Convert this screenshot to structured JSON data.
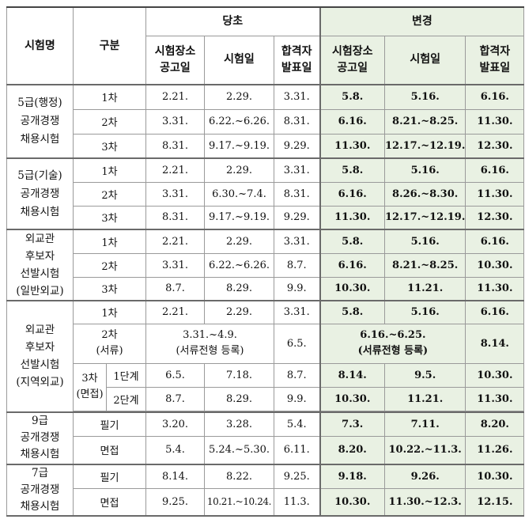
{
  "header": {
    "exam_name": "시험명",
    "category": "구분",
    "original": "당초",
    "changed": "변경",
    "notice_date": "시험장소\n공고일",
    "exam_date": "시험일",
    "result_date": "합격자\n발표일"
  },
  "groups": [
    {
      "name": "5급(행정)\n공개경쟁\n채용시험",
      "rows": [
        {
          "stage": "1차",
          "o": [
            "2.21.",
            "2.29.",
            "3.31."
          ],
          "c": [
            "5.8.",
            "5.16.",
            "6.16."
          ]
        },
        {
          "stage": "2차",
          "o": [
            "3.31.",
            "6.22.~6.26.",
            "8.31."
          ],
          "c": [
            "6.16.",
            "8.21.~8.25.",
            "11.30."
          ]
        },
        {
          "stage": "3차",
          "o": [
            "8.31.",
            "9.17.~9.19.",
            "9.29."
          ],
          "c": [
            "11.30.",
            "12.17.~12.19.",
            "12.30."
          ]
        }
      ]
    },
    {
      "name": "5급(기술)\n공개경쟁\n채용시험",
      "rows": [
        {
          "stage": "1차",
          "o": [
            "2.21.",
            "2.29.",
            "3.31."
          ],
          "c": [
            "5.8.",
            "5.16.",
            "6.16."
          ]
        },
        {
          "stage": "2차",
          "o": [
            "3.31.",
            "6.30.~7.4.",
            "8.31."
          ],
          "c": [
            "6.16.",
            "8.26.~8.30.",
            "11.30."
          ]
        },
        {
          "stage": "3차",
          "o": [
            "8.31.",
            "9.17.~9.19.",
            "9.29."
          ],
          "c": [
            "11.30.",
            "12.17.~12.19.",
            "12.30."
          ]
        }
      ]
    },
    {
      "name": "외교관\n후보자\n선발시험\n(일반외교)",
      "rows": [
        {
          "stage": "1차",
          "o": [
            "2.21.",
            "2.29.",
            "3.31."
          ],
          "c": [
            "5.8.",
            "5.16.",
            "6.16."
          ]
        },
        {
          "stage": "2차",
          "o": [
            "3.31.",
            "6.22.~6.26.",
            "8.7."
          ],
          "c": [
            "6.16.",
            "8.21.~8.25.",
            "10.30."
          ]
        },
        {
          "stage": "3차",
          "o": [
            "8.7.",
            "8.29.",
            "9.9."
          ],
          "c": [
            "10.30.",
            "11.21.",
            "11.30."
          ]
        }
      ]
    },
    {
      "name": "외교관\n후보자\n선발시험\n(지역외교)",
      "row1": {
        "stage": "1차",
        "o": [
          "2.21.",
          "2.29.",
          "3.31."
        ],
        "c": [
          "5.8.",
          "5.16.",
          "6.16."
        ]
      },
      "row2": {
        "stage": "2차\n(서류)",
        "o_merged": "3.31.~4.9.\n(서류전형 등록)",
        "o_result": "6.5.",
        "c_merged": "6.16.~6.25.\n(서류전형 등록)",
        "c_result": "8.14."
      },
      "stage3": "3차\n(면접)",
      "sub_rows": [
        {
          "stage": "1단계",
          "o": [
            "6.5.",
            "7.18.",
            "8.7."
          ],
          "c": [
            "8.14.",
            "9.5.",
            "10.30."
          ]
        },
        {
          "stage": "2단계",
          "o": [
            "8.7.",
            "8.29.",
            "9.9."
          ],
          "c": [
            "10.30.",
            "11.21.",
            "11.30."
          ]
        }
      ]
    },
    {
      "name": "9급\n공개경쟁\n채용시험",
      "rows": [
        {
          "stage": "필기",
          "o": [
            "3.20.",
            "3.28.",
            "5.4."
          ],
          "c": [
            "7.3.",
            "7.11.",
            "8.20."
          ]
        },
        {
          "stage": "면접",
          "o": [
            "5.4.",
            "5.24.~5.30.",
            "6.11."
          ],
          "c": [
            "8.20.",
            "10.22.~11.3.",
            "11.26."
          ]
        }
      ]
    },
    {
      "name": "7급\n공개경쟁\n채용시험",
      "rows": [
        {
          "stage": "필기",
          "o": [
            "8.14.",
            "8.22.",
            "9.25."
          ],
          "c": [
            "9.18.",
            "9.26.",
            "10.30."
          ]
        },
        {
          "stage": "면접",
          "o": [
            "9.25.",
            "10.21.~10.24.",
            "11.3."
          ],
          "c": [
            "10.30.",
            "11.30.~12.3.",
            "12.15."
          ]
        }
      ]
    }
  ]
}
